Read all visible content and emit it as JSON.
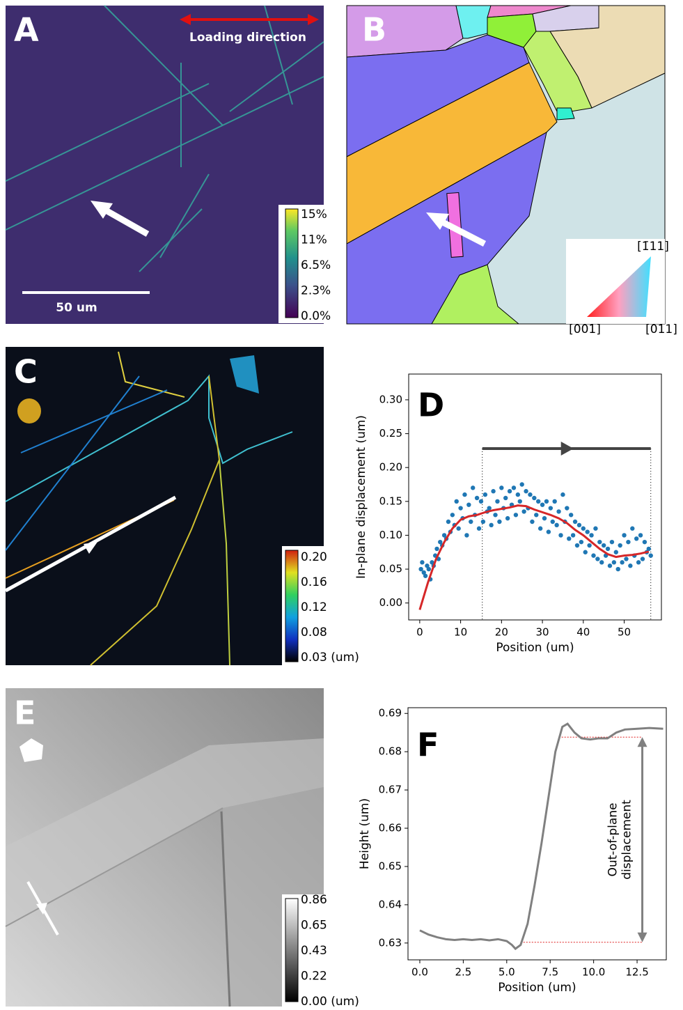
{
  "panels": {
    "a": {
      "label": "A",
      "annotation": "Loading direction",
      "scale_bar": "50 um",
      "colorbar": [
        "15%",
        "11%",
        "6.5%",
        "2.3%",
        "0.0%"
      ]
    },
    "b": {
      "label": "B",
      "triangle": [
        "[1̄11]",
        "[001]",
        "[011]"
      ]
    },
    "c": {
      "label": "C",
      "colorbar": [
        "0.20",
        "0.16",
        "0.12",
        "0.08",
        "0.03 (um)"
      ]
    },
    "e": {
      "label": "E",
      "colorbar": [
        "0.86",
        "0.65",
        "0.43",
        "0.22",
        "0.00 (um)"
      ]
    }
  },
  "chart_data": [
    {
      "type": "scatter",
      "panel_label": "D",
      "x_label": "Position (um)",
      "y_label": "In-plane displacement (um)",
      "xlim": [
        -2.7,
        59.1
      ],
      "ylim": [
        -0.025,
        0.338
      ],
      "xticks": [
        0,
        10,
        20,
        30,
        40,
        50
      ],
      "yticks": [
        {
          "value": 0,
          "label": "0.00"
        },
        {
          "value": 0.05,
          "label": "0.05"
        },
        {
          "value": 0.1,
          "label": "0.10"
        },
        {
          "value": 0.15,
          "label": "0.15"
        },
        {
          "value": 0.2,
          "label": "0.20"
        },
        {
          "value": 0.25,
          "label": "0.25"
        },
        {
          "value": 0.3,
          "label": "0.30"
        }
      ],
      "vlines": [
        15.3,
        56.5
      ],
      "arrow": {
        "x": [
          15.3,
          56.5
        ],
        "y": 0.228
      },
      "series": [
        {
          "color": "#1f77b4",
          "mode": "points",
          "x": [
            0.3,
            0.6,
            1,
            1.4,
            1.8,
            2.2,
            2.6,
            3,
            3.4,
            3.8,
            4.2,
            4.6,
            5,
            5.5,
            6,
            6.5,
            7,
            7.5,
            8,
            8.5,
            9,
            9.5,
            10,
            10.5,
            11,
            11.5,
            12,
            12.5,
            13,
            13.5,
            14,
            14.5,
            15,
            15.5,
            16,
            16.5,
            17,
            17.5,
            18,
            18.5,
            19,
            19.5,
            20,
            20.5,
            21,
            21.5,
            22,
            22.5,
            23,
            23.5,
            24,
            24.5,
            25,
            25.5,
            26,
            26.5,
            27,
            27.5,
            28,
            28.5,
            29,
            29.5,
            30,
            30.5,
            31,
            31.5,
            32,
            32.5,
            33,
            33.5,
            34,
            34.5,
            35,
            35.5,
            36,
            36.5,
            37,
            37.5,
            38,
            38.5,
            39,
            39.5,
            40,
            40.5,
            41,
            41.5,
            42,
            42.5,
            43,
            43.5,
            44,
            44.5,
            45,
            45.5,
            46,
            46.5,
            47,
            47.5,
            48,
            48.5,
            49,
            49.5,
            50,
            50.5,
            51,
            51.5,
            52,
            52.5,
            53,
            53.5,
            54,
            54.5,
            55,
            55.5,
            56,
            56.5
          ],
          "values": [
            0.05,
            0.06,
            0.045,
            0.04,
            0.055,
            0.05,
            0.035,
            0.06,
            0.055,
            0.07,
            0.08,
            0.065,
            0.09,
            0.085,
            0.1,
            0.095,
            0.12,
            0.105,
            0.13,
            0.115,
            0.15,
            0.11,
            0.14,
            0.125,
            0.16,
            0.1,
            0.145,
            0.12,
            0.17,
            0.13,
            0.155,
            0.11,
            0.15,
            0.12,
            0.16,
            0.135,
            0.14,
            0.115,
            0.165,
            0.13,
            0.15,
            0.12,
            0.17,
            0.14,
            0.155,
            0.125,
            0.165,
            0.145,
            0.17,
            0.13,
            0.16,
            0.15,
            0.175,
            0.135,
            0.165,
            0.14,
            0.16,
            0.12,
            0.155,
            0.13,
            0.15,
            0.11,
            0.145,
            0.125,
            0.15,
            0.105,
            0.14,
            0.12,
            0.15,
            0.115,
            0.135,
            0.1,
            0.16,
            0.12,
            0.14,
            0.095,
            0.13,
            0.1,
            0.12,
            0.085,
            0.115,
            0.09,
            0.11,
            0.075,
            0.105,
            0.085,
            0.1,
            0.07,
            0.11,
            0.065,
            0.09,
            0.06,
            0.085,
            0.07,
            0.08,
            0.055,
            0.09,
            0.06,
            0.075,
            0.05,
            0.085,
            0.06,
            0.1,
            0.065,
            0.09,
            0.055,
            0.11,
            0.07,
            0.095,
            0.06,
            0.1,
            0.065,
            0.09,
            0.075,
            0.08,
            0.07
          ]
        },
        {
          "color": "#d62728",
          "mode": "line",
          "x": [
            0,
            2,
            4,
            6,
            8,
            10,
            12,
            14,
            16,
            18,
            20,
            22,
            24,
            26,
            28,
            30,
            32,
            34,
            36,
            38,
            40,
            42,
            44,
            46,
            48,
            50,
            52,
            54,
            56
          ],
          "values": [
            -0.01,
            0.03,
            0.065,
            0.09,
            0.11,
            0.123,
            0.128,
            0.13,
            0.134,
            0.137,
            0.139,
            0.141,
            0.144,
            0.143,
            0.138,
            0.134,
            0.13,
            0.125,
            0.118,
            0.108,
            0.1,
            0.09,
            0.08,
            0.072,
            0.068,
            0.07,
            0.071,
            0.073,
            0.076
          ]
        }
      ]
    },
    {
      "type": "line",
      "panel_label": "F",
      "x_label": "Position (um)",
      "y_label": "Height (um)",
      "annotation": "Out-of-plane\ndisplacement",
      "xlim": [
        -0.68,
        14.18
      ],
      "ylim": [
        0.6256,
        0.6915
      ],
      "xticks": [
        {
          "value": 0,
          "label": "0.0"
        },
        2.5,
        {
          "value": 5,
          "label": "5.0"
        },
        7.5,
        {
          "value": 10,
          "label": "10.0"
        },
        12.5
      ],
      "yticks": [
        0.63,
        0.64,
        0.65,
        0.66,
        0.67,
        0.68,
        0.69
      ],
      "hlines": [
        {
          "y": 0.6838,
          "x": [
            8.0,
            12.8
          ]
        },
        {
          "y": 0.6302,
          "x": [
            5.8,
            12.8
          ]
        }
      ],
      "arrow": {
        "x": 12.8,
        "y": [
          0.6302,
          0.6838
        ]
      },
      "series": [
        {
          "color": "#808080",
          "mode": "line",
          "x": [
            0,
            0.5,
            1,
            1.5,
            2,
            2.5,
            3,
            3.5,
            4,
            4.5,
            5,
            5.3,
            5.5,
            5.8,
            6.2,
            6.6,
            7,
            7.4,
            7.8,
            8.2,
            8.5,
            8.9,
            9.3,
            9.8,
            10.3,
            10.8,
            11.3,
            11.8,
            12.5,
            13.2,
            14
          ],
          "values": [
            0.6333,
            0.6322,
            0.6315,
            0.631,
            0.6308,
            0.631,
            0.6308,
            0.631,
            0.6307,
            0.631,
            0.6305,
            0.6295,
            0.6285,
            0.6295,
            0.635,
            0.645,
            0.656,
            0.668,
            0.68,
            0.6865,
            0.6873,
            0.685,
            0.6835,
            0.6832,
            0.6835,
            0.6835,
            0.685,
            0.6858,
            0.686,
            0.6862,
            0.686
          ]
        }
      ]
    }
  ]
}
